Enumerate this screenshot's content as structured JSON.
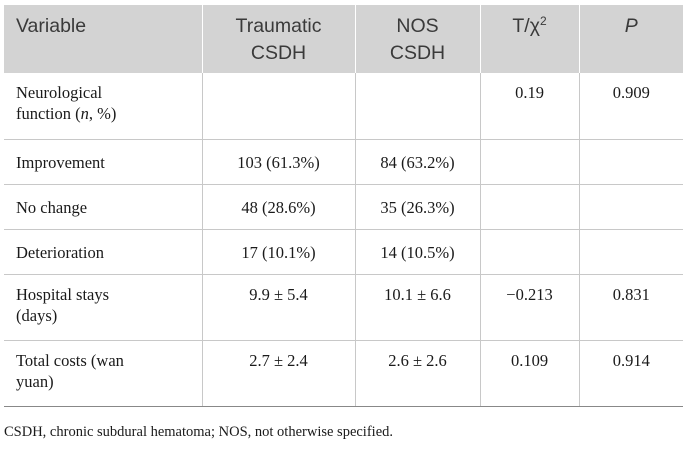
{
  "table": {
    "headers": {
      "variable": "Variable",
      "traumatic_line1": "Traumatic",
      "traumatic_line2": "CSDH",
      "nos_line1": "NOS",
      "nos_line2": "CSDH",
      "stat_prefix": "T/χ",
      "stat_sup": "2",
      "p": "P"
    },
    "rows": [
      {
        "label_a": "Neurological",
        "label_b": "function (",
        "label_n": "n",
        "label_c": ", %)",
        "traumatic": "",
        "nos": "",
        "stat": "0.19",
        "p": "0.909"
      },
      {
        "label": "Improvement",
        "traumatic": "103 (61.3%)",
        "nos": "84 (63.2%)",
        "stat": "",
        "p": ""
      },
      {
        "label": "No change",
        "traumatic": "48 (28.6%)",
        "nos": "35 (26.3%)",
        "stat": "",
        "p": ""
      },
      {
        "label": "Deterioration",
        "traumatic": "17 (10.1%)",
        "nos": "14 (10.5%)",
        "stat": "",
        "p": ""
      },
      {
        "label_a": "Hospital stays",
        "label_b": "(days)",
        "traumatic": "9.9 ± 5.4",
        "nos": "10.1 ± 6.6",
        "stat": "−0.213",
        "p": "0.831"
      },
      {
        "label_a": "Total costs (wan",
        "label_b": "yuan)",
        "traumatic": "2.7 ± 2.4",
        "nos": "2.6 ± 2.6",
        "stat": "0.109",
        "p": "0.914"
      }
    ]
  },
  "footnote": "CSDH, chronic subdural hematoma; NOS, not otherwise specified."
}
